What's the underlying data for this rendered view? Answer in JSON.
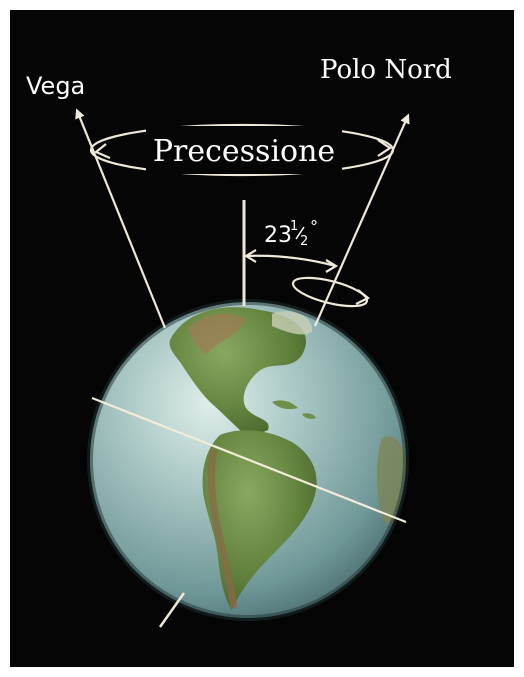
{
  "labels": {
    "star": "Vega",
    "pole": "Polo Nord",
    "motion": "Precessione",
    "tilt_main": "23",
    "tilt_num": "1",
    "tilt_den": "2",
    "tilt_unit": "°"
  },
  "colors": {
    "background": "#050505",
    "lines": "#efe8d8",
    "text": "#ffffff",
    "ocean": "#8fb3b5",
    "land": "#6f8f4a"
  }
}
